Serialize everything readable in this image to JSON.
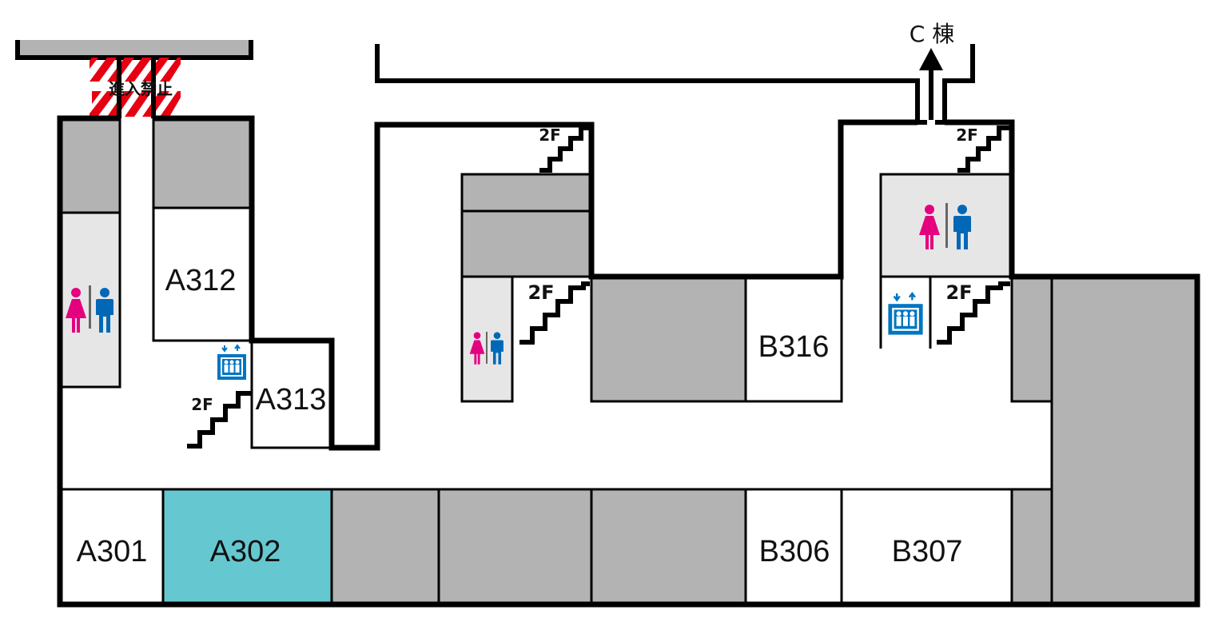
{
  "rooms": {
    "a301": "A301",
    "a302": "A302",
    "a312": "A312",
    "a313": "A313",
    "b306": "B306",
    "b307": "B307",
    "b316": "B316"
  },
  "stairs_label": "2F",
  "no_entry_label": "進入禁止",
  "c_building_label": "C 棟",
  "colors": {
    "highlight": "#65c8d0",
    "unavailable": "#b3b3b3",
    "restroom": "#e6e6e6",
    "female": "#e4007f",
    "male": "#0068b7",
    "elevator": "#0075c2",
    "wall": "#000000"
  }
}
